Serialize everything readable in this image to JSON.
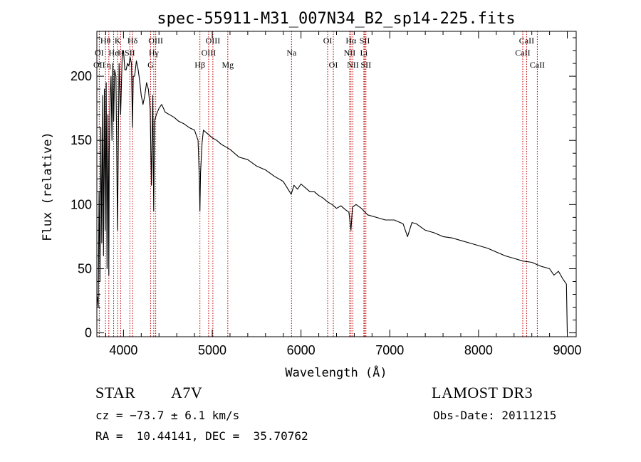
{
  "chart_data": {
    "type": "line",
    "title": "spec-55911-M31_007N34_B2_sp14-225.fits",
    "xlabel": "Wavelength (Å)",
    "ylabel": "Flux (relative)",
    "xlim": [
      3700,
      9100
    ],
    "ylim": [
      -3,
      235
    ],
    "xticks": [
      4000,
      5000,
      6000,
      7000,
      8000,
      9000
    ],
    "yticks": [
      0,
      50,
      100,
      150,
      200
    ],
    "series": [
      {
        "name": "spectrum",
        "x": [
          3700,
          3705,
          3715,
          3725,
          3735,
          3745,
          3755,
          3765,
          3775,
          3785,
          3795,
          3805,
          3815,
          3825,
          3835,
          3840,
          3850,
          3860,
          3870,
          3880,
          3889,
          3900,
          3915,
          3933,
          3950,
          3968,
          3985,
          4000,
          4015,
          4030,
          4045,
          4060,
          4075,
          4090,
          4101,
          4110,
          4125,
          4145,
          4165,
          4185,
          4200,
          4220,
          4240,
          4260,
          4280,
          4300,
          4315,
          4330,
          4340,
          4350,
          4370,
          4400,
          4430,
          4470,
          4520,
          4570,
          4620,
          4680,
          4740,
          4800,
          4840,
          4855,
          4861,
          4868,
          4885,
          4900,
          4950,
          5000,
          5050,
          5100,
          5150,
          5200,
          5300,
          5400,
          5500,
          5600,
          5700,
          5800,
          5890,
          5920,
          5960,
          6000,
          6050,
          6100,
          6150,
          6200,
          6250,
          6300,
          6350,
          6400,
          6450,
          6500,
          6540,
          6563,
          6580,
          6620,
          6680,
          6750,
          6850,
          6950,
          7050,
          7150,
          7200,
          7250,
          7300,
          7400,
          7500,
          7600,
          7700,
          7800,
          7900,
          8000,
          8100,
          8200,
          8300,
          8400,
          8500,
          8600,
          8700,
          8800,
          8850,
          8900,
          8950,
          8990,
          9000
        ],
        "y": [
          25,
          28,
          20,
          110,
          40,
          160,
          70,
          185,
          60,
          190,
          80,
          195,
          50,
          170,
          45,
          140,
          185,
          200,
          150,
          210,
          165,
          205,
          200,
          80,
          210,
          170,
          215,
          220,
          205,
          205,
          210,
          208,
          215,
          210,
          160,
          200,
          200,
          212,
          205,
          195,
          185,
          178,
          185,
          195,
          190,
          175,
          115,
          185,
          95,
          165,
          170,
          175,
          178,
          172,
          170,
          168,
          165,
          163,
          160,
          158,
          150,
          120,
          95,
          125,
          148,
          158,
          155,
          152,
          150,
          147,
          145,
          143,
          137,
          135,
          130,
          127,
          122,
          118,
          108,
          115,
          112,
          116,
          113,
          110,
          110,
          107,
          105,
          102,
          100,
          97,
          99,
          96,
          94,
          80,
          98,
          100,
          97,
          92,
          90,
          88,
          88,
          85,
          75,
          86,
          85,
          80,
          78,
          75,
          74,
          72,
          70,
          68,
          66,
          63,
          60,
          58,
          56,
          55,
          52,
          50,
          45,
          48,
          42,
          38,
          0
        ],
        "style": "solid-black-line"
      }
    ],
    "spectral_lines": [
      {
        "name": "OII",
        "wavelength": 3727,
        "row": 3
      },
      {
        "name": "Hθ",
        "wavelength": 3797,
        "row": 1
      },
      {
        "name": "OI",
        "wavelength": 3727,
        "row": 2
      },
      {
        "name": "He",
        "wavelength": 3889,
        "row": 2
      },
      {
        "name": "η",
        "wavelength": 3835,
        "row": 3
      },
      {
        "name": "K",
        "wavelength": 3934,
        "row": 1
      },
      {
        "name": "H",
        "wavelength": 3968,
        "row": 2
      },
      {
        "name": "Hδ",
        "wavelength": 4102,
        "row": 1
      },
      {
        "name": "SII",
        "wavelength": 4072,
        "row": 2
      },
      {
        "name": "OIII",
        "wavelength": 4363,
        "row": 1
      },
      {
        "name": "Hγ",
        "wavelength": 4341,
        "row": 2
      },
      {
        "name": "G",
        "wavelength": 4305,
        "row": 3
      },
      {
        "name": "Hβ",
        "wavelength": 4861,
        "row": 3
      },
      {
        "name": "OIII",
        "wavelength": 5007,
        "row": 1
      },
      {
        "name": "OIII",
        "wavelength": 4959,
        "row": 2
      },
      {
        "name": "Mg",
        "wavelength": 5175,
        "row": 3
      },
      {
        "name": "Na",
        "wavelength": 5893,
        "row": 2
      },
      {
        "name": "OI",
        "wavelength": 6300,
        "row": 1
      },
      {
        "name": "OI",
        "wavelength": 6364,
        "row": 3
      },
      {
        "name": "Hα",
        "wavelength": 6563,
        "row": 1
      },
      {
        "name": "SII",
        "wavelength": 6717,
        "row": 1
      },
      {
        "name": "NII",
        "wavelength": 6548,
        "row": 2
      },
      {
        "name": "Li",
        "wavelength": 6708,
        "row": 2
      },
      {
        "name": "NII",
        "wavelength": 6584,
        "row": 3
      },
      {
        "name": "SII",
        "wavelength": 6731,
        "row": 3
      },
      {
        "name": "CaII",
        "wavelength": 8542,
        "row": 1
      },
      {
        "name": "CaII",
        "wavelength": 8498,
        "row": 2
      },
      {
        "name": "CaII",
        "wavelength": 8662,
        "row": 3
      }
    ]
  },
  "info": {
    "object_class": "STAR",
    "subclass": "A7V",
    "survey": "LAMOST DR3",
    "cz": "cz = −73.7 ± 6.1 km/s",
    "obs_date": "Obs-Date: 20111215",
    "coords": "RA =  10.44141, DEC =  35.70762"
  },
  "colors": {
    "spectrum": "#000000",
    "line_markers": "#c00000",
    "axes": "#000000"
  }
}
